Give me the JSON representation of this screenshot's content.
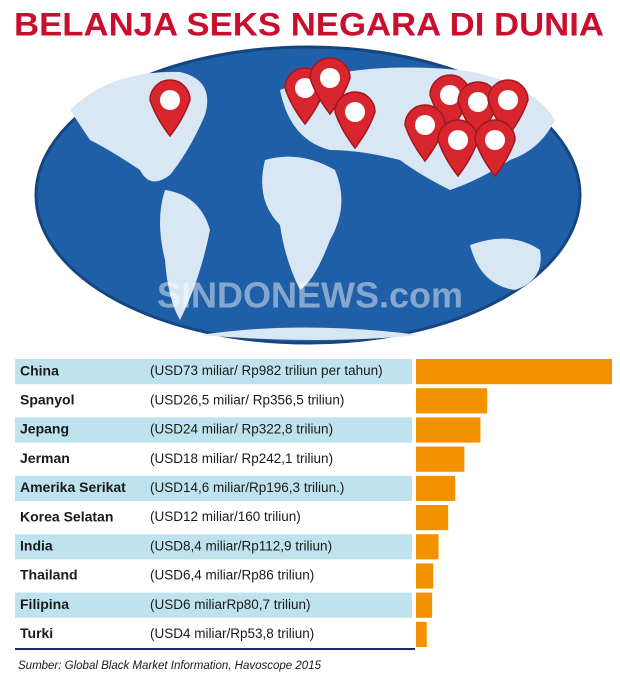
{
  "chart_data": {
    "type": "bar",
    "title": "BELANJA SEKS NEGARA DI DUNIA",
    "watermark": "SINDONEWS.com",
    "categories": [
      "China",
      "Spanyol",
      "Jepang",
      "Jerman",
      "Amerika Serikat",
      "Korea Selatan",
      "India",
      "Thailand",
      "Filipina",
      "Turki"
    ],
    "values": [
      73,
      26.5,
      24,
      18,
      14.6,
      12,
      8.4,
      6.4,
      6,
      4
    ],
    "value_labels": [
      "(USD73 miliar/ Rp982 triliun per tahun)",
      "(USD26,5 miliar/ Rp356,5 triliun)",
      "(USD24 miliar/ Rp322,8 triliun)",
      "(USD18 miliar/ Rp242,1 triliun)",
      "(USD14,6 miliar/Rp196,3 triliun.)",
      "(USD12 miliar/160 triliun)",
      "(USD8,4 miliar/Rp112,9 triliun)",
      "(USD6,4 miliar/Rp86 triliun)",
      "(USD6 miliarRp80,7 triliun)",
      "(USD4 miliar/Rp53,8 triliun)"
    ],
    "color": "#f39200",
    "source": "Sumber: Global Black Market Information, Havoscope 2015"
  }
}
